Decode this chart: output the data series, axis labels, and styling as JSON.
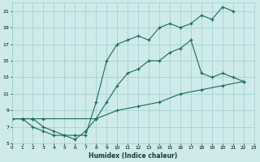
{
  "xlabel": "Humidex (Indice chaleur)",
  "bg_color": "#ceeaea",
  "grid_color": "#9ecece",
  "line_color": "#1a6b5a",
  "xlim": [
    0,
    23
  ],
  "ylim": [
    5,
    22
  ],
  "xticks": [
    0,
    1,
    2,
    3,
    4,
    5,
    6,
    7,
    8,
    9,
    10,
    11,
    12,
    13,
    14,
    15,
    16,
    17,
    18,
    19,
    20,
    21,
    22,
    23
  ],
  "yticks": [
    5,
    7,
    9,
    11,
    13,
    15,
    17,
    19,
    21
  ],
  "line1_x": [
    0,
    1,
    2,
    3,
    4,
    5,
    6,
    7,
    8,
    9,
    10,
    11,
    12,
    13,
    14,
    15,
    16,
    17,
    18,
    19,
    20,
    21
  ],
  "line1_y": [
    8,
    8,
    8,
    7,
    6.5,
    6,
    6,
    6,
    10,
    15,
    17,
    17.5,
    18,
    17.5,
    19,
    19.5,
    19,
    19.5,
    20.5,
    20,
    21.5,
    21
  ],
  "line2_x": [
    0,
    1,
    2,
    3,
    4,
    5,
    6,
    7,
    8,
    9,
    10,
    11,
    12,
    13,
    14,
    15,
    16,
    17,
    18,
    19,
    20,
    21,
    22
  ],
  "line2_y": [
    8,
    8,
    7,
    6.5,
    6,
    6,
    5.5,
    6.5,
    8,
    10,
    12,
    13.5,
    14,
    15,
    15,
    16,
    16.5,
    17.5,
    13.5,
    13,
    13.5,
    13,
    12.5
  ],
  "line3_x": [
    0,
    1,
    2,
    3,
    8,
    10,
    12,
    14,
    16,
    18,
    20,
    22
  ],
  "line3_y": [
    8,
    8,
    8,
    8,
    8,
    9,
    9.5,
    10,
    11,
    11.5,
    12,
    12.5
  ]
}
